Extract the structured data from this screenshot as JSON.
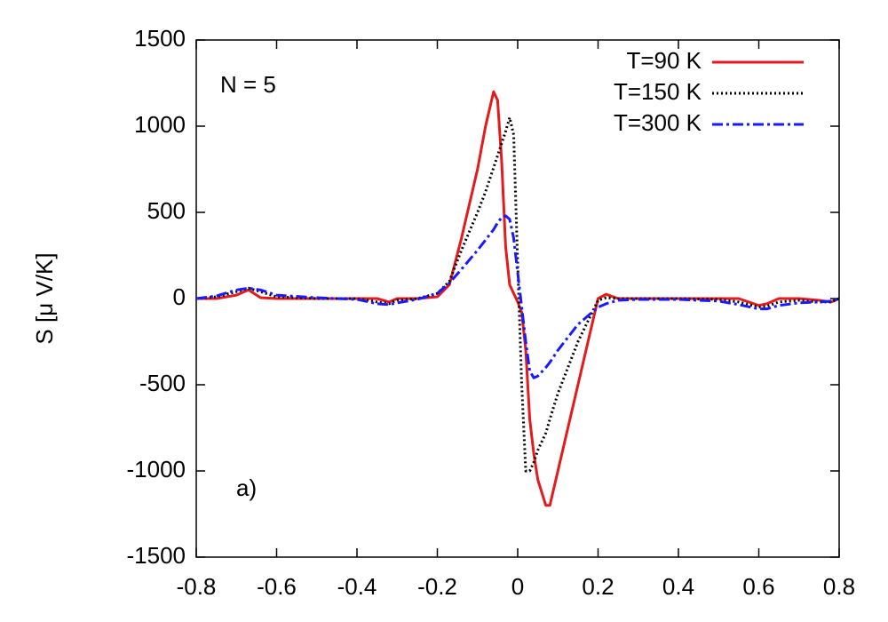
{
  "chart_data": {
    "type": "line",
    "y_label": "S [μ V/K]",
    "annotations": [
      "N = 5",
      "a)"
    ],
    "x": [
      -0.8,
      -0.75,
      -0.7,
      -0.67,
      -0.64,
      -0.6,
      -0.5,
      -0.4,
      -0.35,
      -0.32,
      -0.3,
      -0.25,
      -0.2,
      -0.17,
      -0.14,
      -0.1,
      -0.08,
      -0.06,
      -0.05,
      -0.04,
      -0.03,
      -0.02,
      -0.01,
      0,
      0.01,
      0.02,
      0.03,
      0.04,
      0.05,
      0.07,
      0.08,
      0.1,
      0.15,
      0.2,
      0.22,
      0.25,
      0.3,
      0.4,
      0.5,
      0.55,
      0.6,
      0.62,
      0.65,
      0.7,
      0.75,
      0.78,
      0.8
    ],
    "series": [
      {
        "name": "T=90 K",
        "color": "#e41a1c",
        "line_style": "solid",
        "values": [
          0,
          0,
          20,
          50,
          5,
          0,
          0,
          0,
          0,
          -20,
          0,
          0,
          10,
          80,
          350,
          750,
          1000,
          1200,
          1150,
          800,
          300,
          80,
          30,
          -20,
          -80,
          -300,
          -700,
          -900,
          -1050,
          -1200,
          -1200,
          -1000,
          -500,
          0,
          25,
          0,
          0,
          0,
          0,
          0,
          -40,
          -30,
          0,
          0,
          -10,
          -20,
          0
        ]
      },
      {
        "name": "T=150 K",
        "color": "#000000",
        "line_style": "dotted",
        "values": [
          0,
          10,
          40,
          60,
          40,
          10,
          0,
          0,
          -20,
          -30,
          -10,
          0,
          30,
          100,
          280,
          500,
          620,
          760,
          830,
          900,
          970,
          1050,
          950,
          200,
          -500,
          -1000,
          -1000,
          -950,
          -880,
          -780,
          -700,
          -550,
          -250,
          -10,
          5,
          0,
          0,
          0,
          -5,
          -20,
          -50,
          -45,
          -20,
          -10,
          -20,
          -20,
          0
        ]
      },
      {
        "name": "T=300 K",
        "color": "#1a1aff",
        "line_style": "dashdot",
        "values": [
          0,
          15,
          50,
          60,
          50,
          20,
          5,
          -5,
          -30,
          -35,
          -25,
          -5,
          30,
          90,
          170,
          280,
          340,
          400,
          440,
          470,
          480,
          460,
          350,
          150,
          -50,
          -250,
          -420,
          -460,
          -450,
          -400,
          -370,
          -300,
          -150,
          -50,
          -30,
          -10,
          -5,
          -5,
          -15,
          -35,
          -60,
          -60,
          -40,
          -25,
          -20,
          -15,
          0
        ]
      }
    ],
    "xlim": [
      -0.8,
      0.8
    ],
    "xticks": [
      -0.8,
      -0.6,
      -0.4,
      -0.2,
      0,
      0.2,
      0.4,
      0.6,
      0.8
    ],
    "ylim": [
      -1500,
      1500
    ],
    "yticks": [
      -1500,
      -1000,
      -500,
      0,
      500,
      1000,
      1500
    ],
    "legend": "top-right",
    "grid": false
  }
}
